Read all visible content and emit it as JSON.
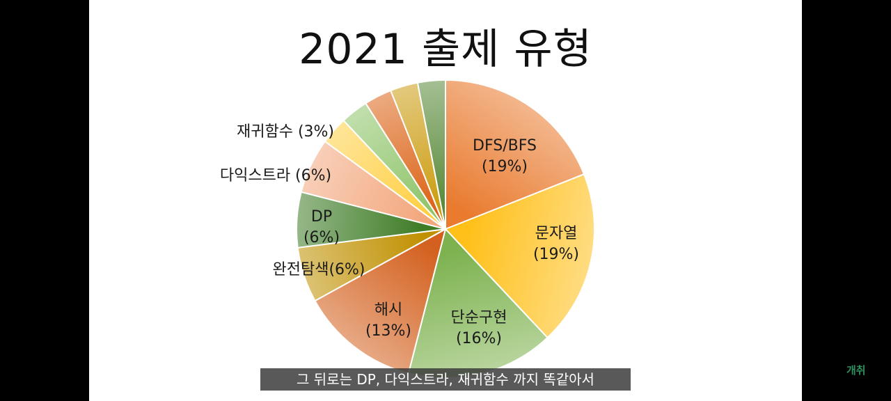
{
  "slide": {
    "title": "2021 출제 유형"
  },
  "chart_data": {
    "type": "pie",
    "title": "2021 출제 유형",
    "slices": [
      {
        "label": "DFS/BFS",
        "pct_label": "(19%)",
        "value": 19,
        "color": "#E97A2E"
      },
      {
        "label": "문자열",
        "pct_label": "(19%)",
        "value": 19,
        "color": "#FFC01A"
      },
      {
        "label": "단순구현",
        "pct_label": "(16%)",
        "value": 16,
        "color": "#7DB24F"
      },
      {
        "label": "해시",
        "pct_label": "(13%)",
        "value": 13,
        "color": "#D3601E"
      },
      {
        "label": "완전탐색(6%)",
        "pct_label": "",
        "value": 6,
        "color": "#C09000"
      },
      {
        "label": "DP",
        "pct_label": "(6%)",
        "value": 6,
        "color": "#3E7C26"
      },
      {
        "label": "다익스트라 (6%)",
        "pct_label": "",
        "value": 6,
        "color": "#F3A77D"
      },
      {
        "label": "재귀함수 (3%)",
        "pct_label": "",
        "value": 3,
        "color": "#FFCF43"
      },
      {
        "label": "",
        "pct_label": "",
        "value": 3,
        "color": "#8FC46A"
      },
      {
        "label": "",
        "pct_label": "",
        "value": 3,
        "color": "#DC6418"
      },
      {
        "label": "",
        "pct_label": "",
        "value": 3,
        "color": "#CC9D12"
      },
      {
        "label": "",
        "pct_label": "",
        "value": 3,
        "color": "#5A8A3A"
      }
    ]
  },
  "overlay": {
    "caption": "그 뒤로는 DP, 다익스트라, 재귀함수 까지 똑같아서",
    "watermark": "개취"
  }
}
